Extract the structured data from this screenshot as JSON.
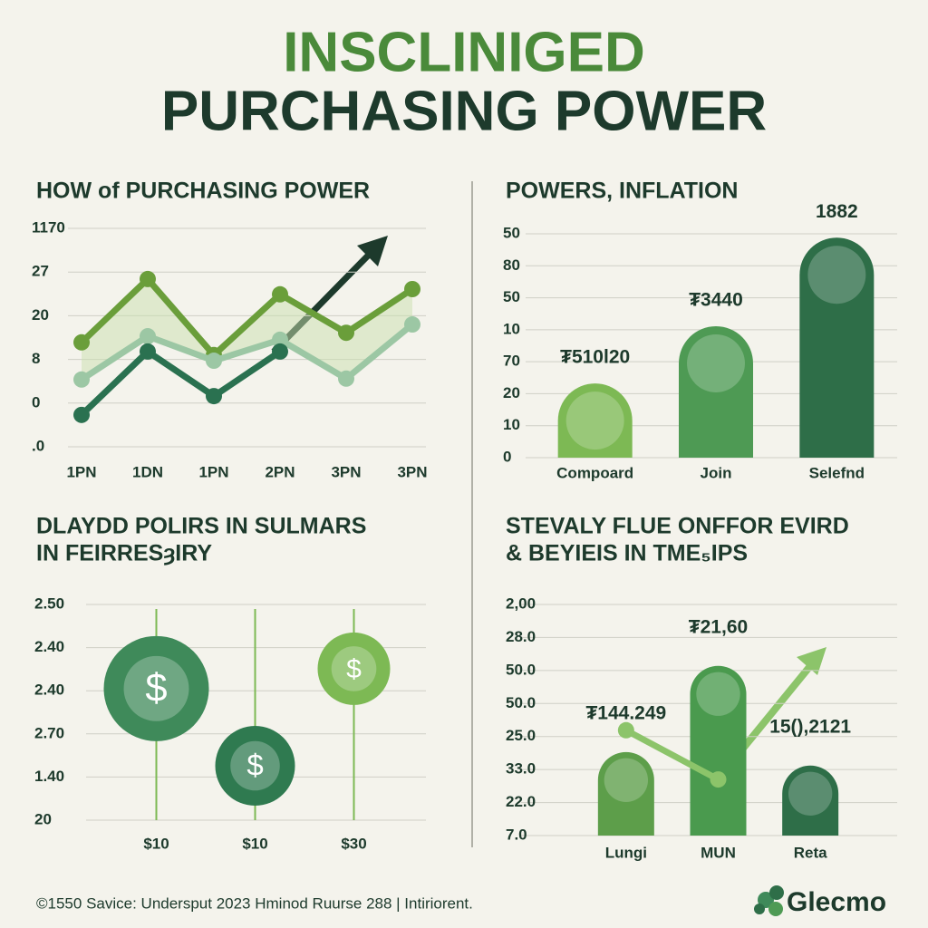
{
  "header": {
    "title_line1": "INSCLINIGED",
    "title_line2": "PURCHASING POWER"
  },
  "footer": "©1550 Savice: Undersput 2023 Hminod Ruurse 288 | Intiriorent.",
  "logo": "Glecmo",
  "chart_data": [
    {
      "type": "line",
      "title": [
        "HOW of PURCHASING POWER"
      ],
      "categories": [
        "1PN",
        "1DN",
        "1PN",
        "2PN",
        "3PN",
        "3PN"
      ],
      "ylim": [
        0,
        5
      ],
      "yticks": [
        {
          "value": 0,
          "label": ".0"
        },
        {
          "value": 1,
          "label": "0"
        },
        {
          "value": 2,
          "label": "8"
        },
        {
          "value": 3,
          "label": "20"
        },
        {
          "value": 4,
          "label": "27"
        },
        {
          "value": 5,
          "label": "1170"
        }
      ],
      "grid": true,
      "series": [
        {
          "color": "#6a9e3a",
          "values": [
            2.39,
            3.84,
            2.1,
            3.49,
            2.61,
            3.61
          ]
        },
        {
          "color": "#9cc7a4",
          "values": [
            1.54,
            2.53,
            1.97,
            2.45,
            1.56,
            2.8
          ]
        },
        {
          "color": "#2a7150",
          "values": [
            0.73,
            2.18,
            1.16,
            2.18,
            null,
            null
          ]
        }
      ]
    },
    {
      "type": "bar",
      "title": [
        "POWERS, INFLATION"
      ],
      "categories": [
        "Compoard",
        "Join",
        "Selefnd"
      ],
      "values": [
        2.32,
        4.11,
        6.88
      ],
      "colors": [
        "#7db954",
        "#4e9a54",
        "#2e6e48"
      ],
      "annotations": [
        "₮510l20",
        "₮3440",
        "1882"
      ],
      "ylim": [
        0,
        7
      ],
      "yticks": [
        {
          "value": 0,
          "label": "0"
        },
        {
          "value": 1,
          "label": "10"
        },
        {
          "value": 2,
          "label": "20"
        },
        {
          "value": 3,
          "label": "70"
        },
        {
          "value": 4,
          "label": "10"
        },
        {
          "value": 5,
          "label": "50"
        },
        {
          "value": 6,
          "label": "80"
        },
        {
          "value": 7,
          "label": "50"
        }
      ],
      "grid": true
    },
    {
      "type": "bubble",
      "title": [
        "DLAYDD POLIRS IN SULMARS",
        "IN FEIRRESȝIRY"
      ],
      "categories": [
        "$10",
        "$10",
        "$30"
      ],
      "values": [
        3.05,
        1.26,
        3.51
      ],
      "sizes": [
        58,
        44,
        40
      ],
      "colors": [
        "#3f8a5a",
        "#2f7a50",
        "#7db954"
      ],
      "symbol": "$",
      "ylim": [
        0,
        5
      ],
      "yticks": [
        {
          "value": 0,
          "label": "20"
        },
        {
          "value": 1,
          "label": "1.40"
        },
        {
          "value": 2,
          "label": "2.70"
        },
        {
          "value": 3,
          "label": "2.40"
        },
        {
          "value": 4,
          "label": "2.40"
        },
        {
          "value": 5,
          "label": "2.50"
        }
      ],
      "grid": true
    },
    {
      "type": "combo",
      "title": [
        "STEVALY FLUE ONFFOR EVIRD",
        "& BEYIEIS IN TME₅IPS"
      ],
      "categories": [
        "Lungi",
        "MUN",
        "Reta"
      ],
      "series": [
        {
          "type": "bar",
          "colors": [
            "#5d9e4a",
            "#4a9a4e",
            "#2e6e48"
          ],
          "values": [
            2.53,
            5.14,
            2.12
          ]
        },
        {
          "type": "line",
          "color": "#8cc46a",
          "values": [
            3.19,
            1.7,
            null
          ]
        }
      ],
      "annotations": [
        "₮144.249",
        "₮21,60",
        "15(),2121"
      ],
      "ylim": [
        0,
        7
      ],
      "yticks": [
        {
          "value": 0,
          "label": "7.0"
        },
        {
          "value": 1,
          "label": "22.0"
        },
        {
          "value": 2,
          "label": "33.0"
        },
        {
          "value": 3,
          "label": "25.0"
        },
        {
          "value": 4,
          "label": "50.0"
        },
        {
          "value": 5,
          "label": "50.0"
        },
        {
          "value": 6,
          "label": "28.0"
        },
        {
          "value": 7,
          "label": "2,00"
        }
      ],
      "grid": true
    }
  ]
}
